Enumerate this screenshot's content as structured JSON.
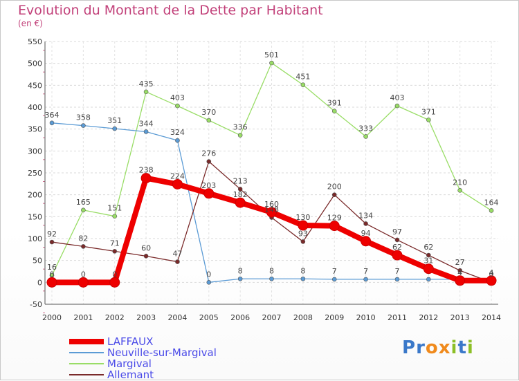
{
  "header": {
    "title": "Evolution du Montant de la Dette par Habitant",
    "subtitle": "(en €)"
  },
  "logo": {
    "text": "Proxiti",
    "letters": [
      {
        "ch": "P",
        "color": "#3a78c9"
      },
      {
        "ch": "r",
        "color": "#3a78c9"
      },
      {
        "ch": "o",
        "color": "#f08a1c"
      },
      {
        "ch": "x",
        "color": "#f08a1c"
      },
      {
        "ch": "i",
        "color": "#8cbf26"
      },
      {
        "ch": "t",
        "color": "#3a78c9"
      },
      {
        "ch": "i",
        "color": "#8cbf26"
      }
    ]
  },
  "chart_data": {
    "type": "line",
    "title": "Evolution du Montant de la Dette par Habitant",
    "ylabel": "(en €)",
    "xlabel": "",
    "ylim": [
      -50,
      550
    ],
    "ytick_step": 50,
    "grid": true,
    "legend_position": "bottom-left",
    "categories": [
      "2000",
      "2001",
      "2002",
      "2003",
      "2004",
      "2005",
      "2006",
      "2007",
      "2008",
      "2009",
      "2010",
      "2011",
      "2012",
      "2013",
      "2014"
    ],
    "series": [
      {
        "name": "LAFFAUX",
        "color": "#ee0000",
        "weight": "heavy",
        "values": [
          0,
          0,
          0,
          238,
          224,
          203,
          182,
          160,
          130,
          129,
          94,
          62,
          31,
          4,
          4
        ],
        "labels": [
          "0",
          "0",
          "0",
          "238",
          "224",
          "203",
          "182",
          "160",
          "130",
          "129",
          "94",
          "62",
          "31",
          "4",
          "4"
        ]
      },
      {
        "name": "Neuville-sur-Margival",
        "color": "#5b9bd5",
        "weight": "thin",
        "values": [
          364,
          358,
          351,
          344,
          324,
          0,
          8,
          8,
          8,
          7,
          7,
          7,
          7,
          7,
          7
        ],
        "labels": [
          "364",
          "358",
          "351",
          "344",
          "324",
          "0",
          "8",
          "8",
          "8",
          "7",
          "7",
          "7",
          "",
          "",
          ""
        ]
      },
      {
        "name": "Margival",
        "color": "#99dd66",
        "weight": "thin",
        "values": [
          16,
          165,
          151,
          435,
          403,
          370,
          336,
          501,
          451,
          391,
          333,
          403,
          371,
          210,
          164
        ],
        "labels": [
          "16",
          "165",
          "151",
          "435",
          "403",
          "370",
          "336",
          "501",
          "451",
          "391",
          "333",
          "403",
          "371",
          "210",
          "164"
        ]
      },
      {
        "name": "Allemant",
        "color": "#7a2a2a",
        "weight": "thin",
        "values": [
          92,
          82,
          71,
          60,
          47,
          276,
          213,
          148,
          93,
          200,
          134,
          97,
          62,
          27,
          0
        ],
        "labels": [
          "92",
          "82",
          "71",
          "60",
          "47",
          "276",
          "213",
          "148",
          "93",
          "200",
          "134",
          "97",
          "62",
          "27",
          "0"
        ]
      }
    ]
  }
}
